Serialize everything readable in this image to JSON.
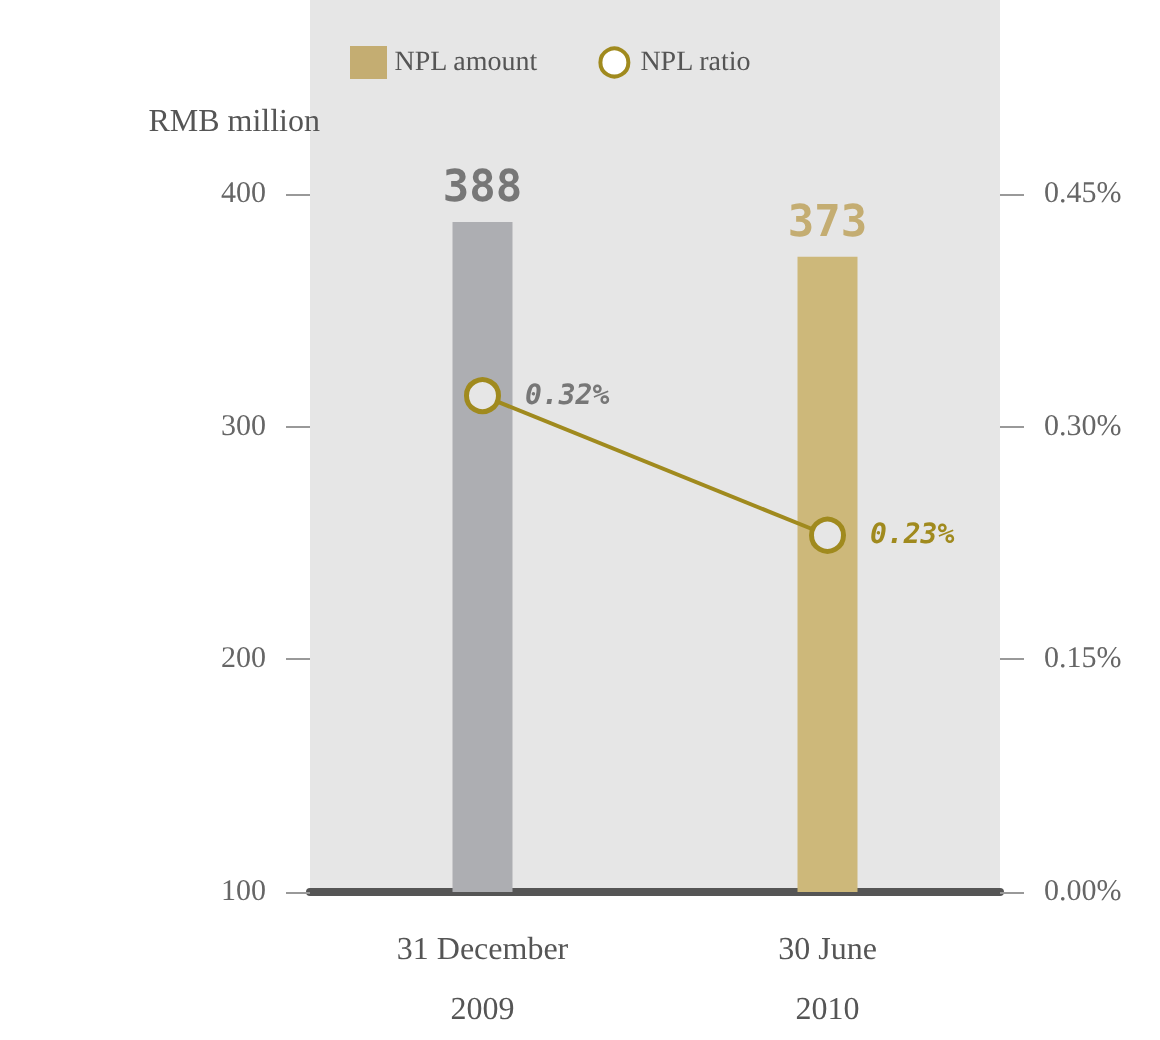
{
  "chart_data": {
    "type": "bar",
    "ylabel": "RMB million",
    "categories": [
      "31 December 2009",
      "30 June 2010"
    ],
    "series": [
      {
        "name": "NPL amount",
        "color": "#c4ad72",
        "colors": [
          "#adaeb2",
          "#cdb87a"
        ],
        "values": [
          388,
          373
        ],
        "value_labels": [
          "388",
          "373"
        ]
      },
      {
        "name": "NPL ratio",
        "type": "line",
        "axis": "y2",
        "color": "#a08a1e",
        "values": [
          0.32,
          0.23
        ],
        "value_labels": [
          "0.32%",
          "0.23%"
        ]
      }
    ],
    "ylim": [
      100,
      400
    ],
    "yticks": [
      100,
      200,
      300,
      400
    ],
    "y2lim": [
      0,
      0.45
    ],
    "y2ticks": [
      {
        "value": 0,
        "label": "0.00%"
      },
      {
        "value": 0.15,
        "label": "0.15%"
      },
      {
        "value": 0.3,
        "label": "0.30%"
      },
      {
        "value": 0.45,
        "label": "0.45%"
      }
    ],
    "legend": "top",
    "marker": "circle",
    "grid": false
  }
}
